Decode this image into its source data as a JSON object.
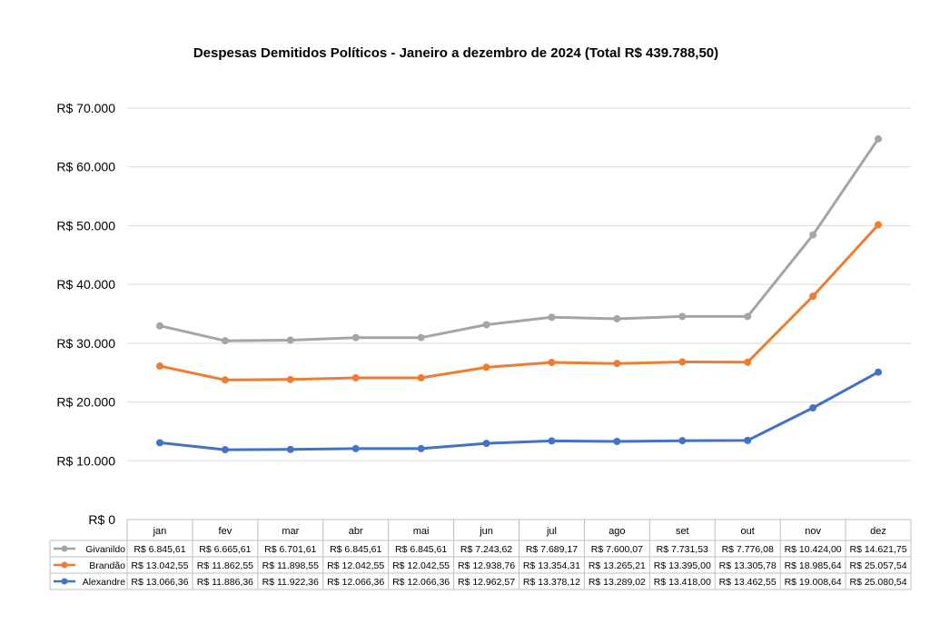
{
  "chart_data": {
    "type": "line",
    "stacked": true,
    "title": "Despesas Demitidos Políticos - Janeiro a dezembro de 2024 (Total R$ 439.788,50)",
    "categories": [
      "jan",
      "fev",
      "mar",
      "abr",
      "mai",
      "jun",
      "jul",
      "ago",
      "set",
      "out",
      "nov",
      "dez"
    ],
    "ylim": [
      0,
      70000
    ],
    "yticks": [
      0,
      10000,
      20000,
      30000,
      40000,
      50000,
      60000,
      70000
    ],
    "ytick_labels": [
      "R$ 0",
      "R$ 10.000",
      "R$ 20.000",
      "R$ 30.000",
      "R$ 40.000",
      "R$ 50.000",
      "R$ 60.000",
      "R$ 70.000"
    ],
    "grid": true,
    "legend": "data-table",
    "series": [
      {
        "name": "Givanildo",
        "color": "#A5A5A5",
        "values": [
          6845.61,
          6665.61,
          6701.61,
          6845.61,
          6845.61,
          7243.62,
          7689.17,
          7600.07,
          7731.53,
          7776.08,
          10424.0,
          14621.75
        ],
        "labels": [
          "R$ 6.845,61",
          "R$ 6.665,61",
          "R$ 6.701,61",
          "R$ 6.845,61",
          "R$ 6.845,61",
          "R$ 7.243,62",
          "R$ 7.689,17",
          "R$ 7.600,07",
          "R$ 7.731,53",
          "R$ 7.776,08",
          "R$ 10.424,00",
          "R$ 14.621,75"
        ]
      },
      {
        "name": "Brandão",
        "color": "#ED7D31",
        "values": [
          13042.55,
          11862.55,
          11898.55,
          12042.55,
          12042.55,
          12938.76,
          13354.31,
          13265.21,
          13395.0,
          13305.78,
          18985.64,
          25057.54
        ],
        "labels": [
          "R$ 13.042,55",
          "R$ 11.862,55",
          "R$ 11.898,55",
          "R$ 12.042,55",
          "R$ 12.042,55",
          "R$ 12.938,76",
          "R$ 13.354,31",
          "R$ 13.265,21",
          "R$ 13.395,00",
          "R$ 13.305,78",
          "R$ 18.985,64",
          "R$ 25.057,54"
        ]
      },
      {
        "name": "Alexandre",
        "color": "#4472C4",
        "values": [
          13066.36,
          11886.36,
          11922.36,
          12066.36,
          12066.36,
          12962.57,
          13378.12,
          13289.02,
          13418.0,
          13462.55,
          19008.64,
          25080.54
        ],
        "labels": [
          "R$ 13.066,36",
          "R$ 11.886,36",
          "R$ 11.922,36",
          "R$ 12.066,36",
          "R$ 12.066,36",
          "R$ 12.962,57",
          "R$ 13.378,12",
          "R$ 13.289,02",
          "R$ 13.418,00",
          "R$ 13.462,55",
          "R$ 19.008,64",
          "R$ 25.080,54"
        ]
      }
    ]
  }
}
